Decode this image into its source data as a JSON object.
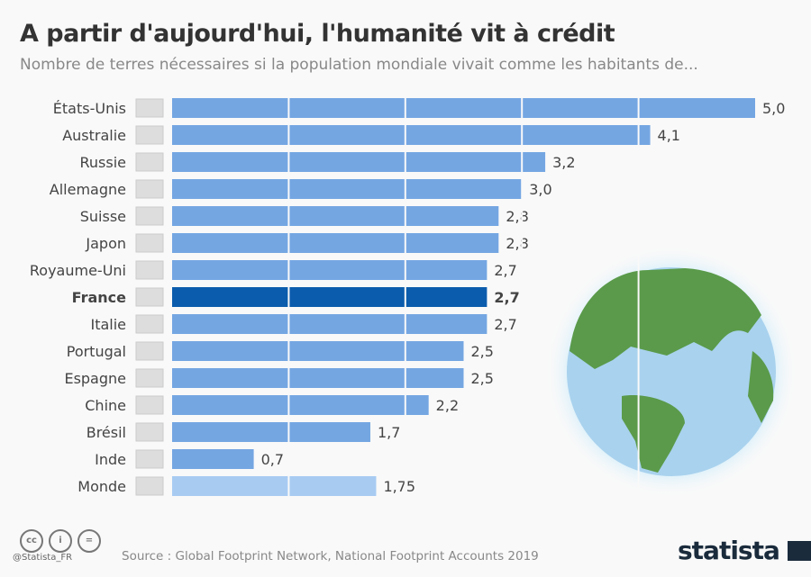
{
  "title": "A partir d'aujourd'hui, l'humanité vit à crédit",
  "subtitle": "Nombre de terres nécessaires si la population mondiale vivait comme les habitants de...",
  "chart_data": {
    "type": "bar",
    "orientation": "horizontal",
    "categories": [
      "États-Unis",
      "Australie",
      "Russie",
      "Allemagne",
      "Suisse",
      "Japon",
      "Royaume-Uni",
      "France",
      "Italie",
      "Portugal",
      "Espagne",
      "Chine",
      "Brésil",
      "Inde",
      "Monde"
    ],
    "values": [
      5.0,
      4.1,
      3.2,
      3.0,
      2.8,
      2.8,
      2.7,
      2.7,
      2.7,
      2.5,
      2.5,
      2.2,
      1.7,
      0.7,
      1.75
    ],
    "value_labels": [
      "5,0",
      "4,1",
      "3,2",
      "3,0",
      "2,8",
      "2,8",
      "2,7",
      "2,7",
      "2,7",
      "2,5",
      "2,5",
      "2,2",
      "1,7",
      "0,7",
      "1,75"
    ],
    "highlight": "France",
    "xlim": [
      0,
      5
    ],
    "grid": true,
    "colors": {
      "default": "#74a6e2",
      "highlight": "#0b5cad",
      "world": "#a8cbf2"
    }
  },
  "footer": {
    "source": "Source : Global Footprint Network, National Footprint Accounts 2019",
    "handle": "@Statista_FR",
    "logo": "statista",
    "license_icons": [
      "cc",
      "by",
      "nd"
    ]
  }
}
